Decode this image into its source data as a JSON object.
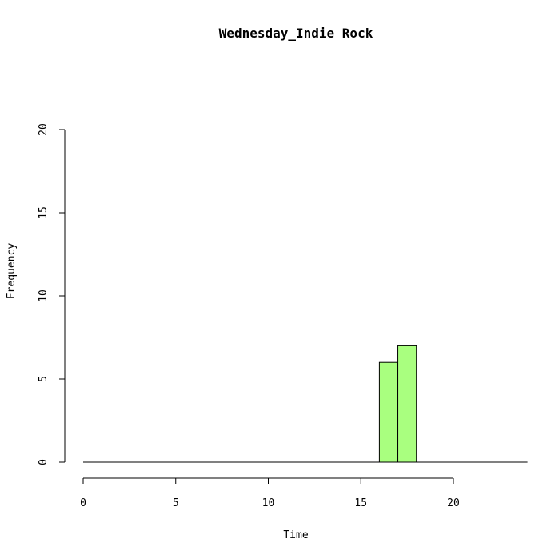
{
  "chart_data": {
    "type": "bar",
    "subtype": "histogram",
    "title": "Wednesday_Indie Rock",
    "xlabel": "Time",
    "ylabel": "Frequency",
    "bins": [
      {
        "start": 16,
        "end": 17,
        "value": 6
      },
      {
        "start": 17,
        "end": 18,
        "value": 7
      }
    ],
    "baseline_range": [
      0,
      24
    ],
    "xlim": [
      0,
      24
    ],
    "ylim": [
      0,
      20
    ],
    "x_ticks": [
      0,
      5,
      10,
      15,
      20
    ],
    "x_tick_labels": [
      "0",
      "5",
      "10",
      "15",
      "20"
    ],
    "y_ticks": [
      0,
      5,
      10,
      15,
      20
    ],
    "y_tick_labels": [
      "0",
      "5",
      "10",
      "15",
      "20"
    ],
    "bar_color": "#a9ff7f",
    "grid": false
  }
}
